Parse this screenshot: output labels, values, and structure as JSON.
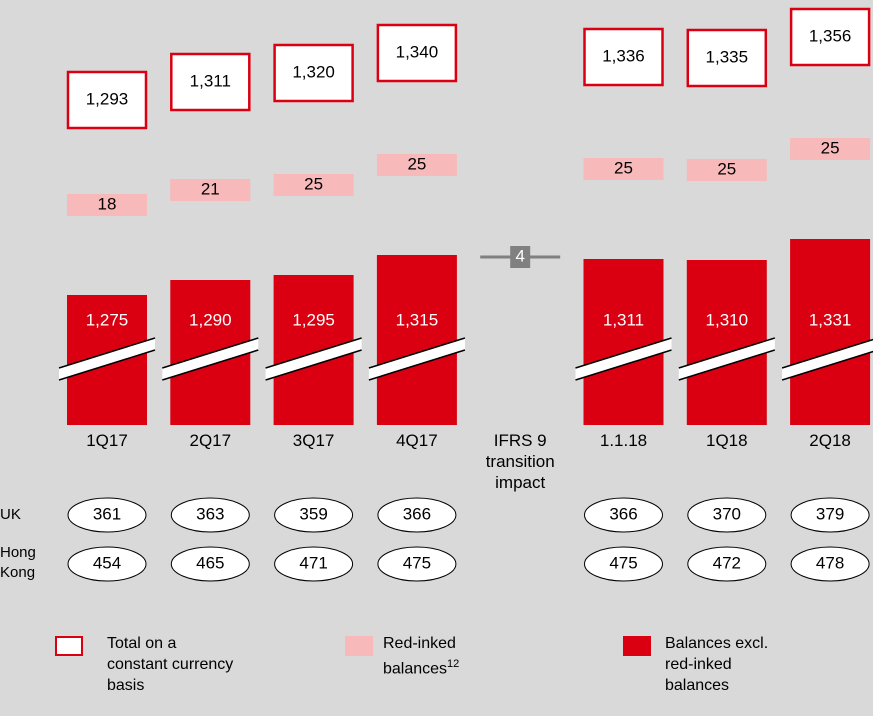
{
  "chart_data": {
    "type": "bar",
    "categories": [
      "1Q17",
      "2Q17",
      "3Q17",
      "4Q17",
      "IFRS 9 transition impact",
      "1.1.18",
      "1Q18",
      "2Q18"
    ],
    "series": [
      {
        "name": "Balances excl. red-inked balances",
        "color": "#db0011",
        "values": [
          1275,
          1290,
          1295,
          1315,
          null,
          1311,
          1310,
          1331
        ]
      },
      {
        "name": "Red-inked balances",
        "footnote": "12",
        "color": "#f7b9b9",
        "values": [
          18,
          21,
          25,
          25,
          null,
          25,
          25,
          25
        ]
      },
      {
        "name": "Total on a constant currency basis",
        "color": "#ffffff",
        "border_color": "#db0011",
        "values": [
          1293,
          1311,
          1320,
          1340,
          null,
          1336,
          1335,
          1356
        ]
      }
    ],
    "transition_impact": {
      "value": 4,
      "color": "#808080"
    },
    "regions": [
      {
        "name": "UK",
        "values": [
          361,
          363,
          359,
          366,
          null,
          366,
          370,
          379
        ]
      },
      {
        "name": "Hong Kong",
        "values": [
          454,
          465,
          471,
          475,
          null,
          475,
          472,
          478
        ]
      }
    ]
  }
}
